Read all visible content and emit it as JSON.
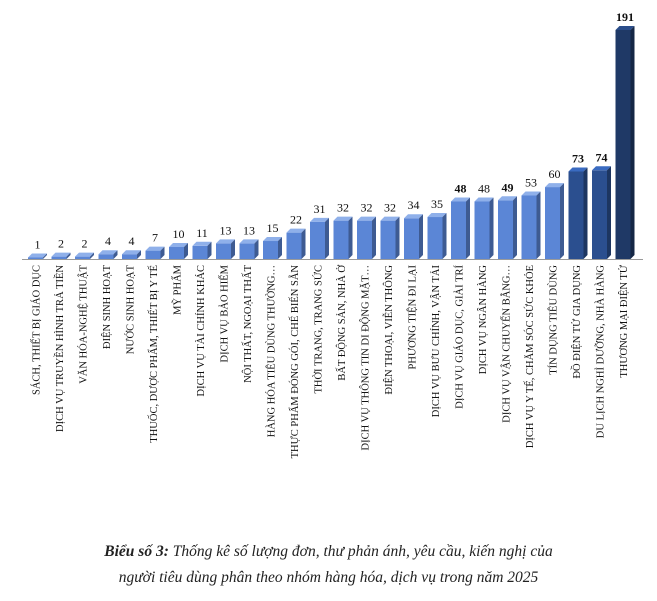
{
  "chart_data": {
    "type": "bar",
    "categories": [
      "SÁCH, THIẾT BỊ GIÁO DỤC",
      "DỊCH VỤ TRUYỀN HÌNH TRẢ TIỀN",
      "VĂN HÓA-NGHỆ THUẬT",
      "ĐIỆN SINH HOẠT",
      "NƯỚC SINH HOẠT",
      "THUỐC, DƯỢC PHẨM, THIẾT BỊ Y TẾ",
      "MỸ PHẨM",
      "DỊCH VỤ TÀI CHÍNH KHÁC",
      "DỊCH VỤ BẢO HIỂM",
      "NỘI THẤT, NGOẠI THẤT",
      "HÀNG HÓA TIÊU DÙNG THƯỜNG…",
      "THỰC PHẨM ĐÓNG GÓI, CHẾ BIẾN SẴN",
      "THỜI TRANG, TRANG SỨC",
      "BẤT ĐỘNG SẢN, NHÀ Ở",
      "DỊCH VỤ THÔNG TIN DI ĐỘNG MẶT…",
      "ĐIỆN THOẠI, VIỄN THÔNG",
      "PHƯƠNG TIỆN ĐI LẠI",
      "DỊCH VỤ BƯU CHÍNH, VẬN TẢI",
      "DỊCH VỤ GIÁO DỤC, GIẢI TRÍ",
      "DỊCH VỤ NGÂN HÀNG",
      "DỊCH VỤ VẬN CHUYỂN BẰNG…",
      "DỊCH VỤ Y TẾ, CHĂM SÓC SỨC KHỎE",
      "TÍN DỤNG TIÊU DÙNG",
      "ĐỒ ĐIỆN TỬ GIA DỤNG",
      "DU LỊCH NGHỈ DƯỠNG, NHÀ HÀNG",
      "THƯƠNG MẠI ĐIỆN TỬ"
    ],
    "values": [
      1,
      2,
      2,
      4,
      4,
      7,
      10,
      11,
      13,
      13,
      15,
      22,
      31,
      32,
      32,
      32,
      34,
      35,
      48,
      48,
      49,
      53,
      60,
      73,
      74,
      191
    ],
    "ylim": [
      0,
      191
    ],
    "grid": false,
    "legend": "none",
    "colors": {
      "bar_light": "#5b86d6",
      "bar_mid": "#3f6bb8",
      "bar_dark": "#2b4f8f",
      "bar_darkest": "#1f3966",
      "label": "#111111"
    }
  },
  "caption": {
    "line1_lead": "Biểu số 3:",
    "line1_rest": " Thống kê số lượng đơn, thư phản ánh, yêu cầu, kiến nghị của",
    "line2": "người tiêu dùng phân theo nhóm hàng hóa, dịch vụ trong năm 2025"
  }
}
